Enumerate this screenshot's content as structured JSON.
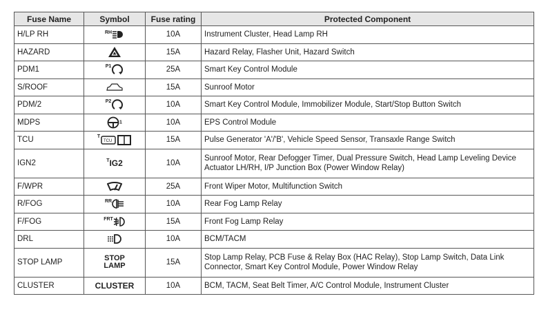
{
  "headers": [
    "Fuse Name",
    "Symbol",
    "Fuse rating",
    "Protected Component"
  ],
  "rows": [
    {
      "name": "H/LP RH",
      "symbol": "headlamp-rh-icon",
      "sup": "RH",
      "rating": "10A",
      "component": "Instrument Cluster, Head Lamp RH"
    },
    {
      "name": "HAZARD",
      "symbol": "hazard-icon",
      "rating": "15A",
      "component": "Hazard Relay, Flasher Unit, Hazard Switch"
    },
    {
      "name": "PDM1",
      "symbol": "power-icon",
      "sup": "P1",
      "rating": "25A",
      "component": "Smart Key Control Module"
    },
    {
      "name": "S/ROOF",
      "symbol": "sunroof-car-icon",
      "rating": "15A",
      "component": "Sunroof Motor"
    },
    {
      "name": "PDM/2",
      "symbol": "power-icon",
      "sup": "P2",
      "rating": "10A",
      "component": "Smart Key Control Module, Immobilizer Module, Start/Stop Button Switch"
    },
    {
      "name": "MDPS",
      "symbol": "steering-wheel-icon",
      "sup_after": "1",
      "rating": "10A",
      "component": "EPS Control Module"
    },
    {
      "name": "TCU",
      "symbol": "tcu-engine-icon",
      "sup": "T",
      "rating": "15A",
      "component": "Pulse Generator 'A'/'B', Vehicle Speed Sensor, Transaxle Range Switch"
    },
    {
      "name": "IGN2",
      "symbol": "ig2-text",
      "sup": "T",
      "symbol_text": "IG2",
      "rating": "10A",
      "component": "Sunroof Motor, Rear Defogger Timer, Dual Pressure Switch, Head Lamp Leveling Device Actuator LH/RH, I/P Junction Box (Power Window Relay)"
    },
    {
      "name": "F/WPR",
      "symbol": "wiper-icon",
      "rating": "25A",
      "component": "Front Wiper Motor, Multifunction Switch"
    },
    {
      "name": "R/FOG",
      "symbol": "rear-fog-icon",
      "sup": "RR",
      "rating": "10A",
      "component": "Rear Fog Lamp Relay"
    },
    {
      "name": "F/FOG",
      "symbol": "front-fog-icon",
      "sup": "FRT",
      "rating": "15A",
      "component": "Front Fog Lamp Relay"
    },
    {
      "name": "DRL",
      "symbol": "drl-icon",
      "rating": "10A",
      "component": "BCM/TACM"
    },
    {
      "name": "STOP LAMP",
      "symbol": "stop-lamp-text",
      "symbol_text": "STOP LAMP",
      "rating": "15A",
      "component": "Stop Lamp Relay, PCB Fuse & Relay Box (HAC Relay), Stop Lamp Switch, Data Link Connector, Smart Key Control Module, Power Window Relay"
    },
    {
      "name": "CLUSTER",
      "symbol": "cluster-text",
      "symbol_text": "CLUSTER",
      "rating": "10A",
      "component": "BCM, TACM, Seat Belt Timer, A/C Control Module, Instrument Cluster"
    }
  ]
}
